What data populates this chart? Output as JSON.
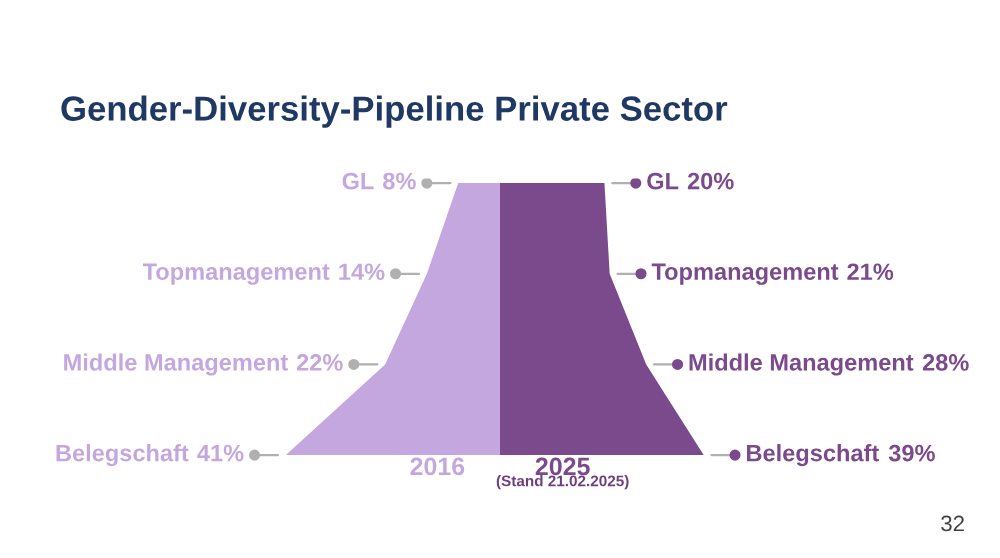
{
  "chart_data": {
    "type": "other",
    "title": "Gender-Diversity-Pipeline Private Sector",
    "categories": [
      "GL",
      "Topmanagement",
      "Middle Management",
      "Belegschaft"
    ],
    "series": [
      {
        "name": "2016",
        "color": "#c4a7de",
        "values": [
          8,
          14,
          22,
          41
        ],
        "value_labels": [
          "8%",
          "14%",
          "22%",
          "41%"
        ]
      },
      {
        "name": "2025",
        "color": "#7b4a8c",
        "values": [
          20,
          21,
          28,
          39
        ],
        "value_labels": [
          "20%",
          "21%",
          "28%",
          "39%"
        ]
      }
    ],
    "annotations": [
      "(Stand 21.02.2025)",
      "32"
    ]
  }
}
